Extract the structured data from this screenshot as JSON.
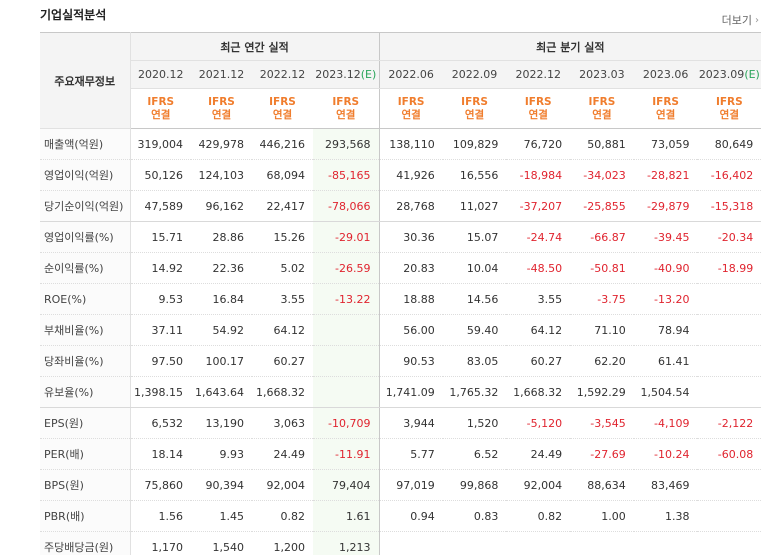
{
  "title": "기업실적분석",
  "more_label": "더보기",
  "header": {
    "row_label": "주요재무정보",
    "annual_group": "최근 연간 실적",
    "quarter_group": "최근 분기 실적",
    "periods": [
      "2020.12",
      "2021.12",
      "2022.12",
      "2023.12",
      "2022.06",
      "2022.09",
      "2022.12",
      "2023.03",
      "2023.06",
      "2023.09"
    ],
    "est_marker": "(E)",
    "ifrs": "IFRS",
    "consolidated": "연결"
  },
  "rows": [
    {
      "label": "매출액(억원)",
      "values": [
        "319,004",
        "429,978",
        "446,216",
        "293,568",
        "138,110",
        "109,829",
        "76,720",
        "50,881",
        "73,059",
        "80,649"
      ]
    },
    {
      "label": "영업이익(억원)",
      "values": [
        "50,126",
        "124,103",
        "68,094",
        "-85,165",
        "41,926",
        "16,556",
        "-18,984",
        "-34,023",
        "-28,821",
        "-16,402"
      ]
    },
    {
      "label": "당기순이익(억원)",
      "values": [
        "47,589",
        "96,162",
        "22,417",
        "-78,066",
        "28,768",
        "11,027",
        "-37,207",
        "-25,855",
        "-29,879",
        "-15,318"
      ]
    },
    {
      "label": "영업이익률(%)",
      "values": [
        "15.71",
        "28.86",
        "15.26",
        "-29.01",
        "30.36",
        "15.07",
        "-24.74",
        "-66.87",
        "-39.45",
        "-20.34"
      ]
    },
    {
      "label": "순이익률(%)",
      "values": [
        "14.92",
        "22.36",
        "5.02",
        "-26.59",
        "20.83",
        "10.04",
        "-48.50",
        "-50.81",
        "-40.90",
        "-18.99"
      ]
    },
    {
      "label": "ROE(%)",
      "values": [
        "9.53",
        "16.84",
        "3.55",
        "-13.22",
        "18.88",
        "14.56",
        "3.55",
        "-3.75",
        "-13.20",
        ""
      ]
    },
    {
      "label": "부채비율(%)",
      "values": [
        "37.11",
        "54.92",
        "64.12",
        "",
        "56.00",
        "59.40",
        "64.12",
        "71.10",
        "78.94",
        ""
      ]
    },
    {
      "label": "당좌비율(%)",
      "values": [
        "97.50",
        "100.17",
        "60.27",
        "",
        "90.53",
        "83.05",
        "60.27",
        "62.20",
        "61.41",
        ""
      ]
    },
    {
      "label": "유보율(%)",
      "values": [
        "1,398.15",
        "1,643.64",
        "1,668.32",
        "",
        "1,741.09",
        "1,765.32",
        "1,668.32",
        "1,592.29",
        "1,504.54",
        ""
      ]
    },
    {
      "label": "EPS(원)",
      "values": [
        "6,532",
        "13,190",
        "3,063",
        "-10,709",
        "3,944",
        "1,520",
        "-5,120",
        "-3,545",
        "-4,109",
        "-2,122"
      ]
    },
    {
      "label": "PER(배)",
      "values": [
        "18.14",
        "9.93",
        "24.49",
        "-11.91",
        "5.77",
        "6.52",
        "24.49",
        "-27.69",
        "-10.24",
        "-60.08"
      ]
    },
    {
      "label": "BPS(원)",
      "values": [
        "75,860",
        "90,394",
        "92,004",
        "79,404",
        "97,019",
        "99,868",
        "92,004",
        "88,634",
        "83,469",
        ""
      ]
    },
    {
      "label": "PBR(배)",
      "values": [
        "1.56",
        "1.45",
        "0.82",
        "1.61",
        "0.94",
        "0.83",
        "0.82",
        "1.00",
        "1.38",
        ""
      ]
    },
    {
      "label": "주당배당금(원)",
      "values": [
        "1,170",
        "1,540",
        "1,200",
        "1,213",
        "",
        "",
        "",
        "",
        "",
        ""
      ]
    }
  ],
  "colors": {
    "negative": "#e0242f",
    "ifrs": "#f07d2d",
    "estimate": "#2aa55a"
  }
}
